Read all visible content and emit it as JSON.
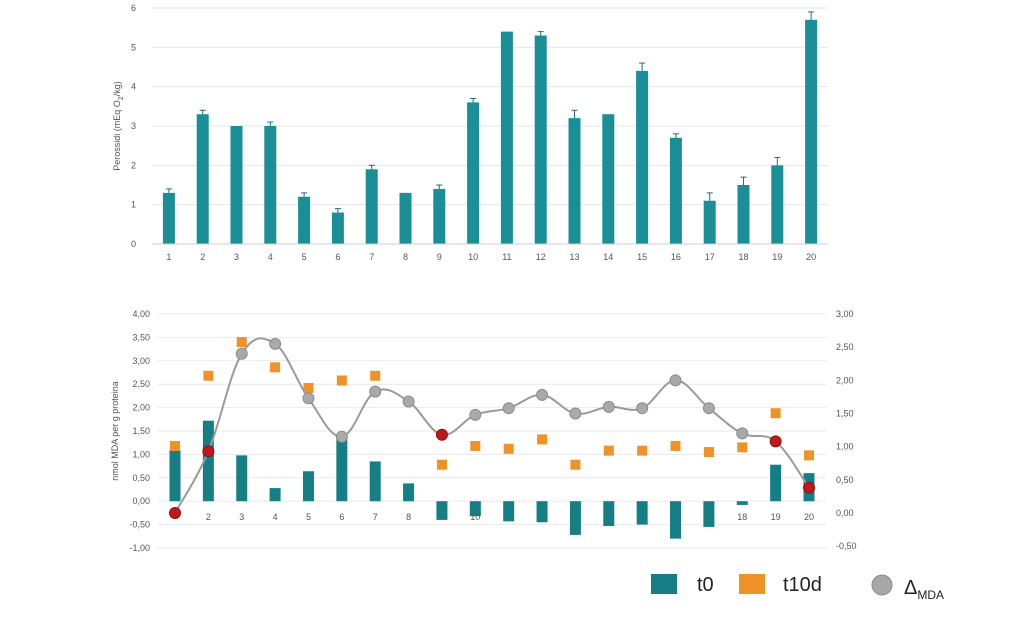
{
  "chart_data": [
    {
      "type": "bar",
      "ylabel": "Perossidi (mEq O",
      "ylabel_sub": "2",
      "ylabel_end": "/kg)",
      "ylim": [
        0,
        6
      ],
      "yticks": [
        "0",
        "1",
        "2",
        "3",
        "4",
        "5",
        "6"
      ],
      "grid": true,
      "categories": [
        "1",
        "2",
        "3",
        "4",
        "5",
        "6",
        "7",
        "8",
        "9",
        "10",
        "11",
        "12",
        "13",
        "14",
        "15",
        "16",
        "17",
        "18",
        "19",
        "20"
      ],
      "values": [
        1.3,
        3.3,
        3.0,
        3.0,
        1.2,
        0.8,
        1.9,
        1.3,
        1.4,
        3.6,
        5.4,
        5.3,
        3.2,
        3.3,
        4.4,
        2.7,
        1.1,
        1.5,
        2.0,
        5.7
      ],
      "errors": [
        0.1,
        0.1,
        0.0,
        0.1,
        0.1,
        0.1,
        0.1,
        0.0,
        0.1,
        0.1,
        0.0,
        0.1,
        0.2,
        0.0,
        0.2,
        0.1,
        0.2,
        0.2,
        0.2,
        0.2
      ],
      "color": "#1a8f98"
    },
    {
      "type": "bar+scatter+line",
      "ylabel": "nmol MDA per g proteina",
      "ylim": [
        -1,
        4
      ],
      "yticks": [
        "-1,00",
        "-0,50",
        "0,00",
        "0,50",
        "1,00",
        "1,50",
        "2,00",
        "2,50",
        "3,00",
        "3,50",
        "4,00"
      ],
      "y2lim": [
        -0.5,
        3
      ],
      "y2ticks": [
        "-0,50",
        "0,00",
        "0,50",
        "1,00",
        "1,50",
        "2,00",
        "2,50",
        "3,00"
      ],
      "grid": true,
      "x_labels_shown": [
        "",
        "2",
        "3",
        "4",
        "5",
        "6",
        "7",
        "8",
        "",
        "10",
        "",
        "",
        "",
        "",
        "",
        "",
        "",
        "18",
        "19",
        "20"
      ],
      "series": [
        {
          "name": "t0",
          "kind": "bar",
          "color": "#167f86",
          "values": [
            1.1,
            1.72,
            0.98,
            0.28,
            0.64,
            1.35,
            0.85,
            0.38,
            -0.4,
            -0.32,
            -0.43,
            -0.45,
            -0.72,
            -0.53,
            -0.5,
            -0.8,
            -0.55,
            -0.08,
            0.78,
            0.6
          ]
        },
        {
          "name": "t10d",
          "kind": "marker-square",
          "color": "#f0922a",
          "values": [
            1.18,
            2.68,
            3.4,
            2.86,
            2.42,
            2.58,
            2.68,
            null,
            0.78,
            1.18,
            1.12,
            1.32,
            0.78,
            1.08,
            1.08,
            1.18,
            1.05,
            1.15,
            1.88,
            0.98
          ]
        },
        {
          "name": "Δ",
          "name_sub": "MDA",
          "kind": "line-circle",
          "axis": "right",
          "color": "#9a9a9a",
          "highlight_color": "#c0191c",
          "highlight": [
            1,
            2,
            9,
            19,
            20
          ],
          "values": [
            0.0,
            0.93,
            2.4,
            2.55,
            1.73,
            1.15,
            1.83,
            1.68,
            1.18,
            1.48,
            1.58,
            1.78,
            1.5,
            1.6,
            1.58,
            2.0,
            1.58,
            1.2,
            1.08,
            0.38
          ]
        }
      ]
    }
  ],
  "legend": {
    "placement": "bottom-right",
    "items": [
      {
        "label": "t0",
        "color": "#167f86",
        "shape": "square"
      },
      {
        "label": "t10d",
        "color": "#f0922a",
        "shape": "square"
      },
      {
        "label": "Δ",
        "sub": "MDA",
        "color": "#a7a7a7",
        "shape": "circle"
      }
    ]
  }
}
